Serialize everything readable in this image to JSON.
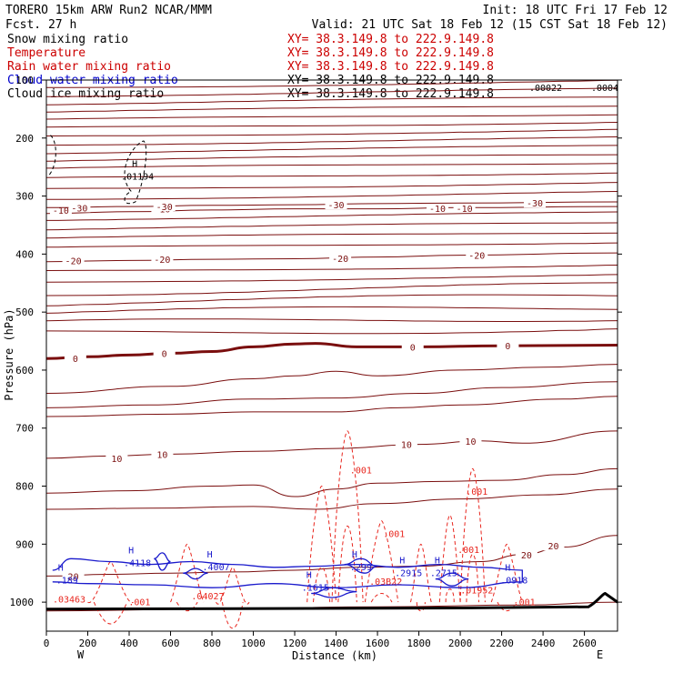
{
  "header": {
    "left_line1": "TORERO  15km ARW   Run2    NCAR/MMM",
    "left_line2": "Fcst.    27 h",
    "init": "Init: 18 UTC Fri 17 Feb 12",
    "valid": "Valid: 21 UTC Sat 18 Feb 12 (15 CST Sat 18 Feb 12)"
  },
  "fields": [
    {
      "name": "Snow mixing ratio",
      "xy": "XY=  38.3.149.8 to 222.9.149.8",
      "color": "#000000",
      "xy_color": "#cc0000"
    },
    {
      "name": "Temperature",
      "xy": "XY=  38.3.149.8 to 222.9.149.8",
      "color": "#cc0000",
      "xy_color": "#cc0000"
    },
    {
      "name": "Rain water mixing ratio",
      "xy": "XY=  38.3.149.8 to 222.9.149.8",
      "color": "#cc0000",
      "xy_color": "#cc0000"
    },
    {
      "name": "Cloud water mixing ratio",
      "xy": "XY=  38.3.149.8 to 222.9.149.8",
      "color": "#0000cc",
      "xy_color": "#000000"
    },
    {
      "name": "Cloud ice mixing ratio",
      "xy": "XY=  38.3.149.8 to 222.9.149.8",
      "color": "#000000",
      "xy_color": "#000000"
    }
  ],
  "colors": {
    "temperature": "#7a0e0e",
    "rain": "#e8261e",
    "cloud_water": "#1a1acc",
    "ink": "#000000"
  },
  "chart_data": {
    "type": "line",
    "xlabel": "Distance (km)",
    "ylabel": "Pressure (hPa)",
    "xlim": [
      0,
      2760
    ],
    "ylim": [
      1050,
      100
    ],
    "x_ticks": [
      0,
      200,
      400,
      600,
      800,
      1000,
      1200,
      1400,
      1600,
      1800,
      2000,
      2200,
      2400,
      2600
    ],
    "y_ticks": [
      100,
      200,
      300,
      400,
      500,
      600,
      700,
      800,
      900,
      1000
    ],
    "endpoints": {
      "left": "W",
      "right": "E"
    },
    "temperature_isotherms": [
      {
        "temp": 0,
        "emphasized": true,
        "points": [
          [
            0,
            580
          ],
          [
            200,
            577
          ],
          [
            400,
            574
          ],
          [
            600,
            571
          ],
          [
            800,
            568
          ],
          [
            1000,
            560
          ],
          [
            1200,
            555
          ],
          [
            1300,
            554
          ],
          [
            1500,
            560
          ],
          [
            1800,
            560
          ],
          [
            2200,
            558
          ],
          [
            2760,
            557
          ]
        ],
        "labels": [
          [
            140,
            580,
            "0"
          ],
          [
            570,
            571,
            "0"
          ],
          [
            1770,
            560,
            "0"
          ],
          [
            2230,
            558,
            "0"
          ]
        ]
      },
      {
        "temp": -10,
        "points": [
          [
            0,
            330
          ],
          [
            400,
            327
          ],
          [
            800,
            324
          ],
          [
            1200,
            322
          ],
          [
            1600,
            322
          ],
          [
            2000,
            320
          ],
          [
            2760,
            318
          ]
        ],
        "labels": [
          [
            70,
            324,
            "-10"
          ],
          [
            560,
            322,
            "-10"
          ],
          [
            1890,
            321,
            "-10"
          ],
          [
            2020,
            321,
            "-10"
          ]
        ]
      },
      {
        "temp": -20,
        "points": [
          [
            0,
            413
          ],
          [
            400,
            411
          ],
          [
            800,
            409
          ],
          [
            1200,
            408
          ],
          [
            1600,
            405
          ],
          [
            2000,
            402
          ],
          [
            2760,
            398
          ]
        ],
        "labels": [
          [
            130,
            411,
            "-20"
          ],
          [
            560,
            409,
            "-20"
          ],
          [
            1420,
            407,
            "-20"
          ],
          [
            2080,
            402,
            "-20"
          ]
        ]
      },
      {
        "temp": -30,
        "points": [
          [
            0,
            320
          ],
          [
            400,
            318
          ],
          [
            800,
            316
          ],
          [
            1200,
            315
          ],
          [
            1600,
            313
          ],
          [
            2000,
            312
          ],
          [
            2760,
            310
          ]
        ],
        "labels": [
          [
            160,
            320,
            "-30"
          ],
          [
            570,
            318,
            "-30"
          ],
          [
            1400,
            315,
            "-30"
          ],
          [
            2360,
            312,
            "-30"
          ]
        ]
      },
      {
        "temp": 10,
        "points": [
          [
            0,
            752
          ],
          [
            300,
            748
          ],
          [
            600,
            745
          ],
          [
            1000,
            740
          ],
          [
            1400,
            735
          ],
          [
            1800,
            728
          ],
          [
            2100,
            722
          ],
          [
            2300,
            726
          ],
          [
            2760,
            705
          ]
        ],
        "labels": [
          [
            340,
            752,
            "10"
          ],
          [
            560,
            745,
            "10"
          ],
          [
            1740,
            728,
            "10"
          ],
          [
            2050,
            722,
            "10"
          ]
        ]
      },
      {
        "temp": 20,
        "points": [
          [
            0,
            955
          ],
          [
            300,
            952
          ],
          [
            600,
            950
          ],
          [
            900,
            948
          ],
          [
            1200,
            945
          ],
          [
            1500,
            940
          ],
          [
            1800,
            938
          ],
          [
            2100,
            930
          ],
          [
            2300,
            918
          ],
          [
            2500,
            905
          ],
          [
            2760,
            885
          ]
        ],
        "labels": [
          [
            130,
            955,
            "20"
          ],
          [
            2320,
            918,
            "20"
          ],
          [
            2450,
            903,
            "20"
          ]
        ]
      }
    ],
    "cloud_water_labels": [
      {
        "marker": "H",
        "value": ".4118",
        "x": 440
      },
      {
        "marker": "H",
        "value": ".4007",
        "x": 820
      },
      {
        "marker": "H",
        "value": ".1615",
        "x": 1300
      },
      {
        "marker": "H",
        "value": ".299",
        "x": 1520
      },
      {
        "marker": "H",
        "value": ".2915",
        "x": 1750
      },
      {
        "marker": "H",
        "value": ".2715",
        "x": 1920
      },
      {
        "marker": "H",
        "value": ".0918",
        "x": 2260
      },
      {
        "marker": "H",
        "value": ".189",
        "x": 100
      }
    ],
    "rain_labels": [
      {
        "value": ".001",
        "x": 1520,
        "p": 778
      },
      {
        "value": ".001",
        "x": 1680,
        "p": 888
      },
      {
        "value": ".001",
        "x": 2040,
        "p": 915
      },
      {
        "value": ".001",
        "x": 2080,
        "p": 815
      },
      {
        "value": ".001",
        "x": 2310,
        "p": 1005
      },
      {
        "value": ".001",
        "x": 450,
        "p": 1005
      },
      {
        "value": ".03463",
        "x": 110,
        "p": 1001
      },
      {
        "value": ".04027",
        "x": 780,
        "p": 995
      },
      {
        "value": ".03B22",
        "x": 1640,
        "p": 970
      },
      {
        "value": ".01952",
        "x": 2080,
        "p": 985
      }
    ],
    "ice_labels": [
      {
        "marker": "H",
        "value": ".01194",
        "x": 440,
        "p": 262
      }
    ],
    "top_right_labels": [
      ".00022",
      ".0004"
    ]
  }
}
